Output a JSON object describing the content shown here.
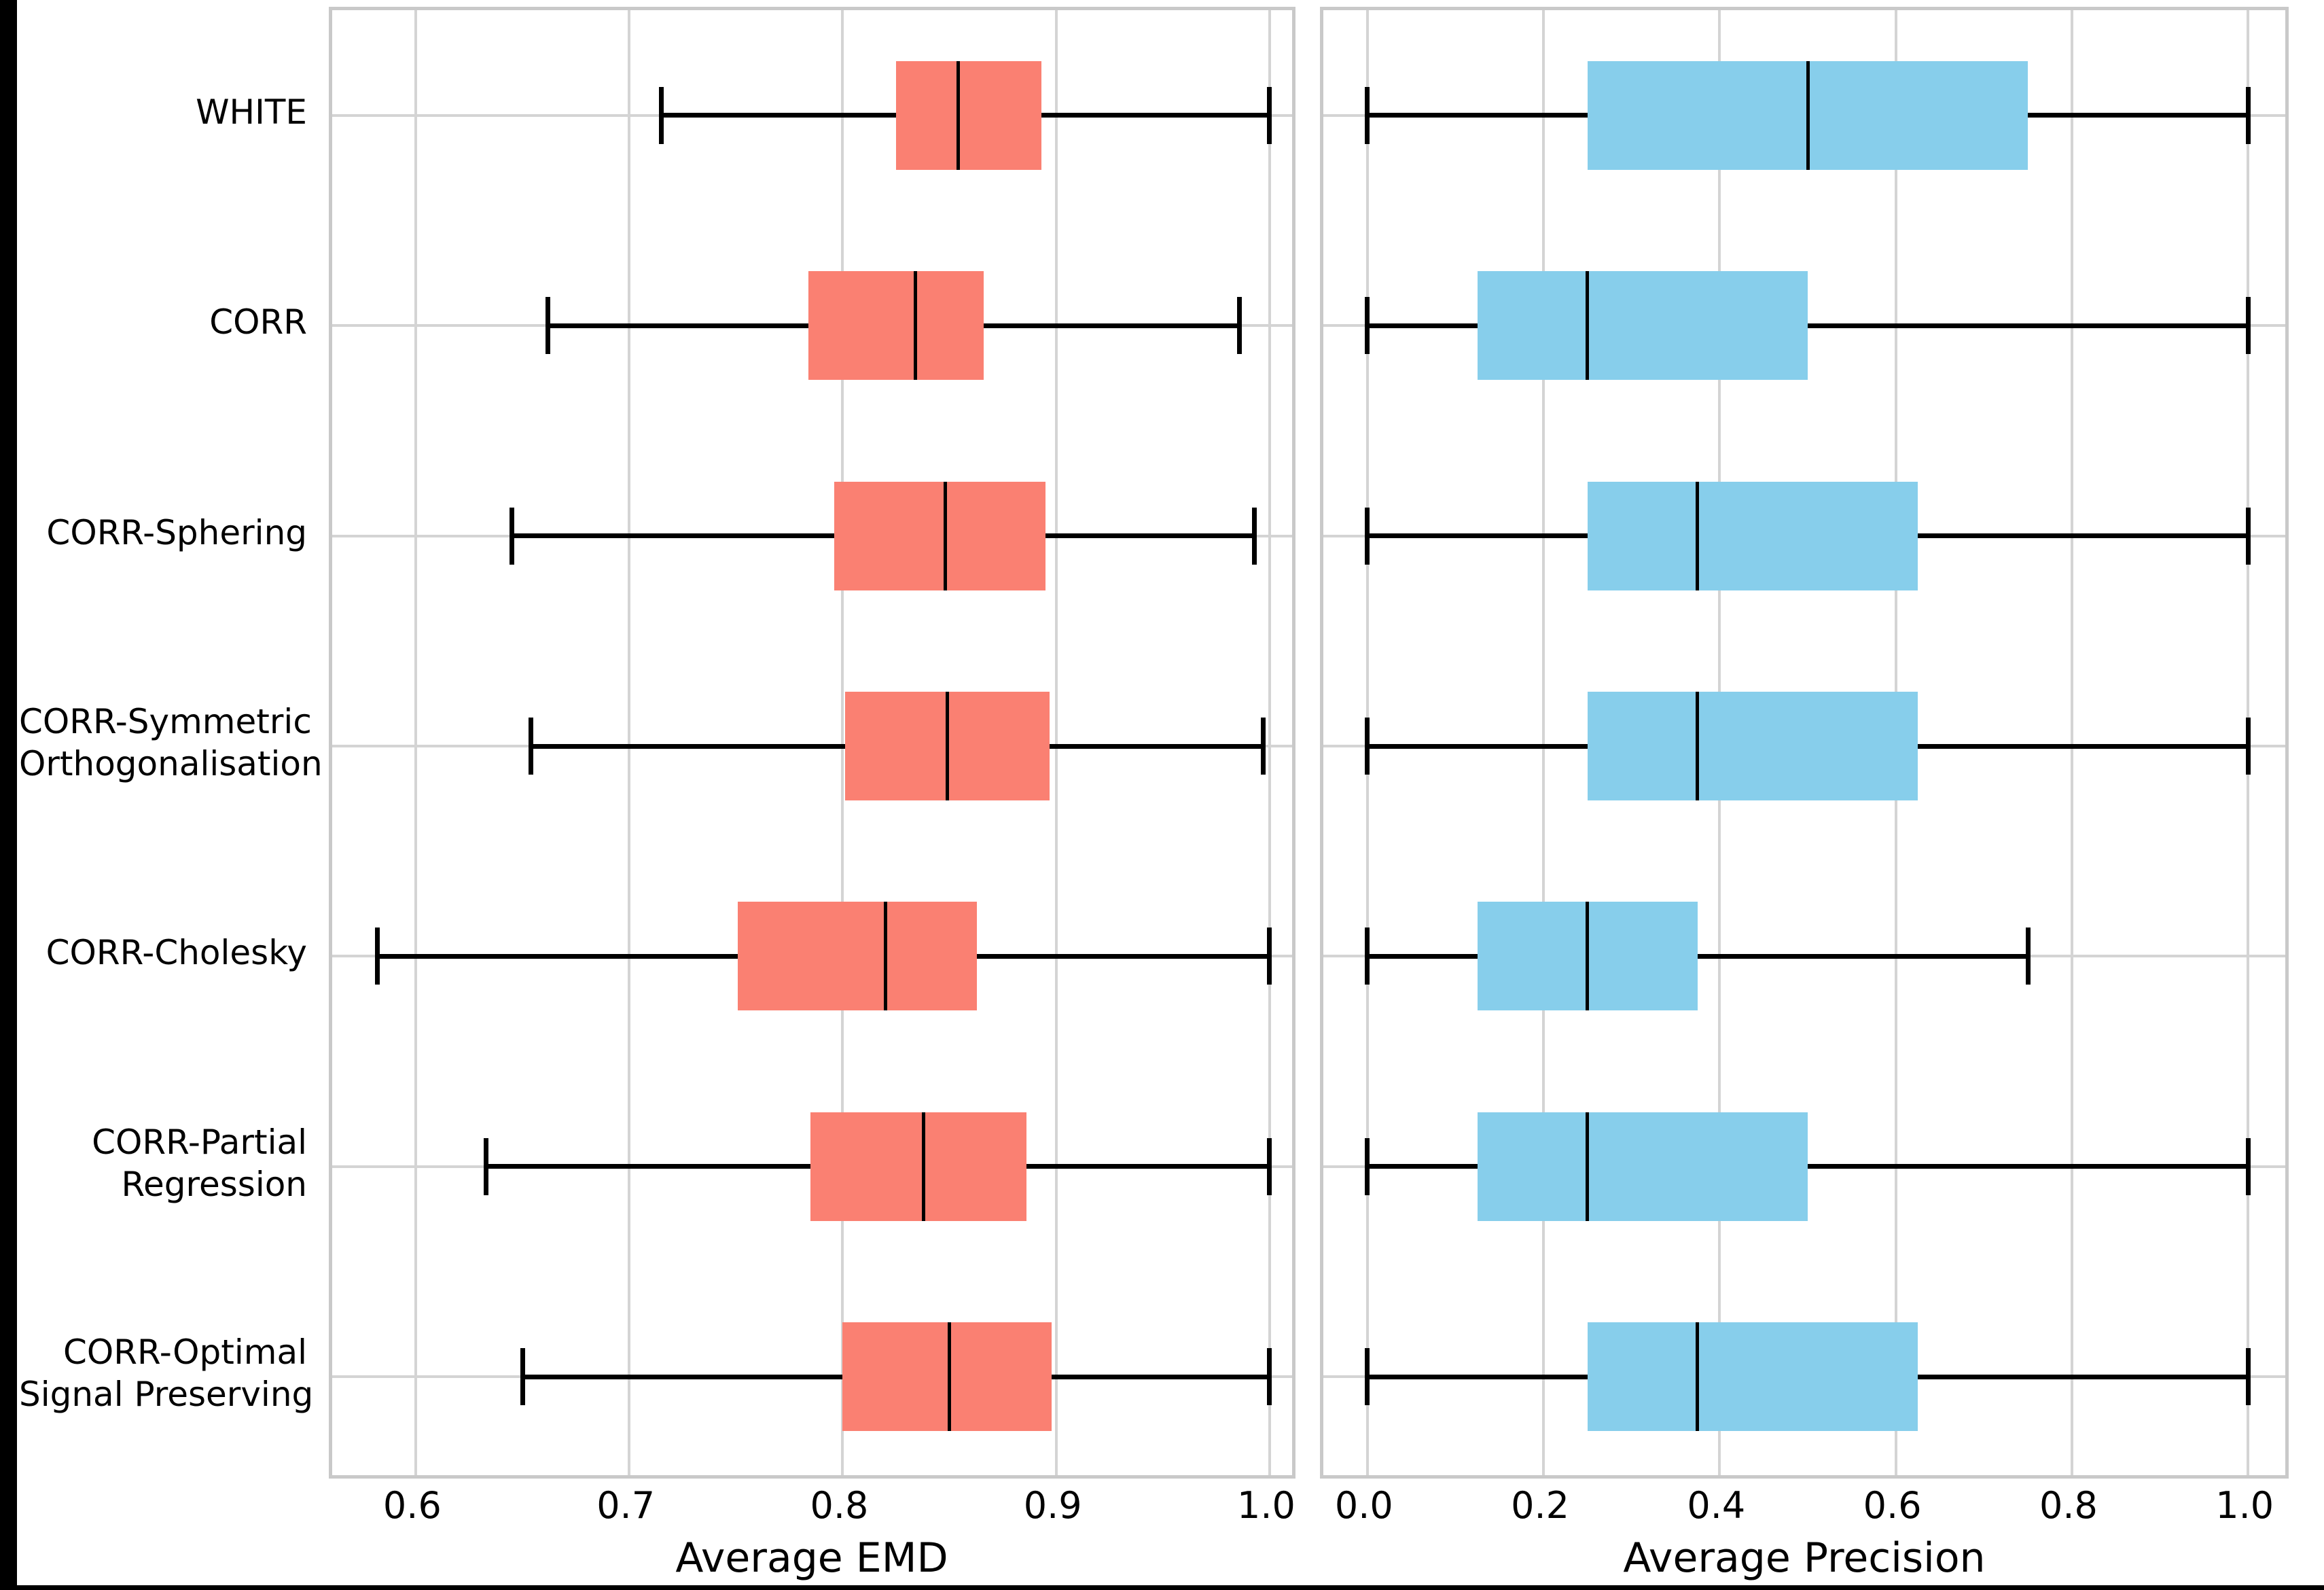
{
  "figure": {
    "background_color": "#ffffff",
    "border_color": "#000000",
    "gridline_color": "#d4d4d4",
    "panel_border_color": "#c9c9c9"
  },
  "chart_data": [
    {
      "type": "boxplot",
      "orientation": "horizontal",
      "xlabel": "Average EMD",
      "box_color": "#FA8072",
      "xlim": [
        0.5609,
        1.0137
      ],
      "ticks": [
        0.6,
        0.7,
        0.8,
        0.9,
        1.0
      ],
      "tick_labels": [
        "0.6",
        "0.7",
        "0.8",
        "0.9",
        "1.0"
      ],
      "grid": true,
      "categories": [
        "WHITE",
        "CORR",
        "CORR-Sphering",
        "CORR-Symmetric Orthogonalisation",
        "CORR-Cholesky",
        "CORR-Partial Regression",
        "CORR-Optimal Signal Preserving"
      ],
      "boxes": [
        {
          "whislo": 0.715,
          "q1": 0.825,
          "med": 0.854,
          "q3": 0.893,
          "whishi": 1.0
        },
        {
          "whislo": 0.662,
          "q1": 0.784,
          "med": 0.834,
          "q3": 0.866,
          "whishi": 0.986
        },
        {
          "whislo": 0.645,
          "q1": 0.796,
          "med": 0.848,
          "q3": 0.895,
          "whishi": 0.993
        },
        {
          "whislo": 0.654,
          "q1": 0.801,
          "med": 0.849,
          "q3": 0.897,
          "whishi": 0.997
        },
        {
          "whislo": 0.582,
          "q1": 0.751,
          "med": 0.82,
          "q3": 0.863,
          "whishi": 1.0
        },
        {
          "whislo": 0.633,
          "q1": 0.785,
          "med": 0.838,
          "q3": 0.886,
          "whishi": 1.0
        },
        {
          "whislo": 0.65,
          "q1": 0.8,
          "med": 0.85,
          "q3": 0.898,
          "whishi": 1.0
        }
      ]
    },
    {
      "type": "boxplot",
      "orientation": "horizontal",
      "xlabel": "Average Precision",
      "box_color": "#87CEEB",
      "xlim": [
        -0.05,
        1.05
      ],
      "ticks": [
        0.0,
        0.2,
        0.4,
        0.6,
        0.8,
        1.0
      ],
      "tick_labels": [
        "0.0",
        "0.2",
        "0.4",
        "0.6",
        "0.8",
        "1.0"
      ],
      "grid": true,
      "categories": [
        "WHITE",
        "CORR",
        "CORR-Sphering",
        "CORR-Symmetric Orthogonalisation",
        "CORR-Cholesky",
        "CORR-Partial Regression",
        "CORR-Optimal Signal Preserving"
      ],
      "boxes": [
        {
          "whislo": 0.0,
          "q1": 0.25,
          "med": 0.5,
          "q3": 0.75,
          "whishi": 1.0
        },
        {
          "whislo": 0.0,
          "q1": 0.125,
          "med": 0.25,
          "q3": 0.5,
          "whishi": 1.0
        },
        {
          "whislo": 0.0,
          "q1": 0.25,
          "med": 0.375,
          "q3": 0.625,
          "whishi": 1.0
        },
        {
          "whislo": 0.0,
          "q1": 0.25,
          "med": 0.375,
          "q3": 0.625,
          "whishi": 1.0
        },
        {
          "whislo": 0.0,
          "q1": 0.125,
          "med": 0.25,
          "q3": 0.375,
          "whishi": 0.75
        },
        {
          "whislo": 0.0,
          "q1": 0.125,
          "med": 0.25,
          "q3": 0.5,
          "whishi": 1.0
        },
        {
          "whislo": 0.0,
          "q1": 0.25,
          "med": 0.375,
          "q3": 0.625,
          "whishi": 1.0
        }
      ]
    }
  ],
  "category_label_lines": [
    [
      "WHITE"
    ],
    [
      "CORR"
    ],
    [
      "CORR-Sphering"
    ],
    [
      "CORR-Symmetric",
      "Orthogonalisation"
    ],
    [
      "CORR-Cholesky"
    ],
    [
      "CORR-Partial",
      "Regression"
    ],
    [
      "CORR-Optimal",
      "Signal Preserving"
    ]
  ]
}
